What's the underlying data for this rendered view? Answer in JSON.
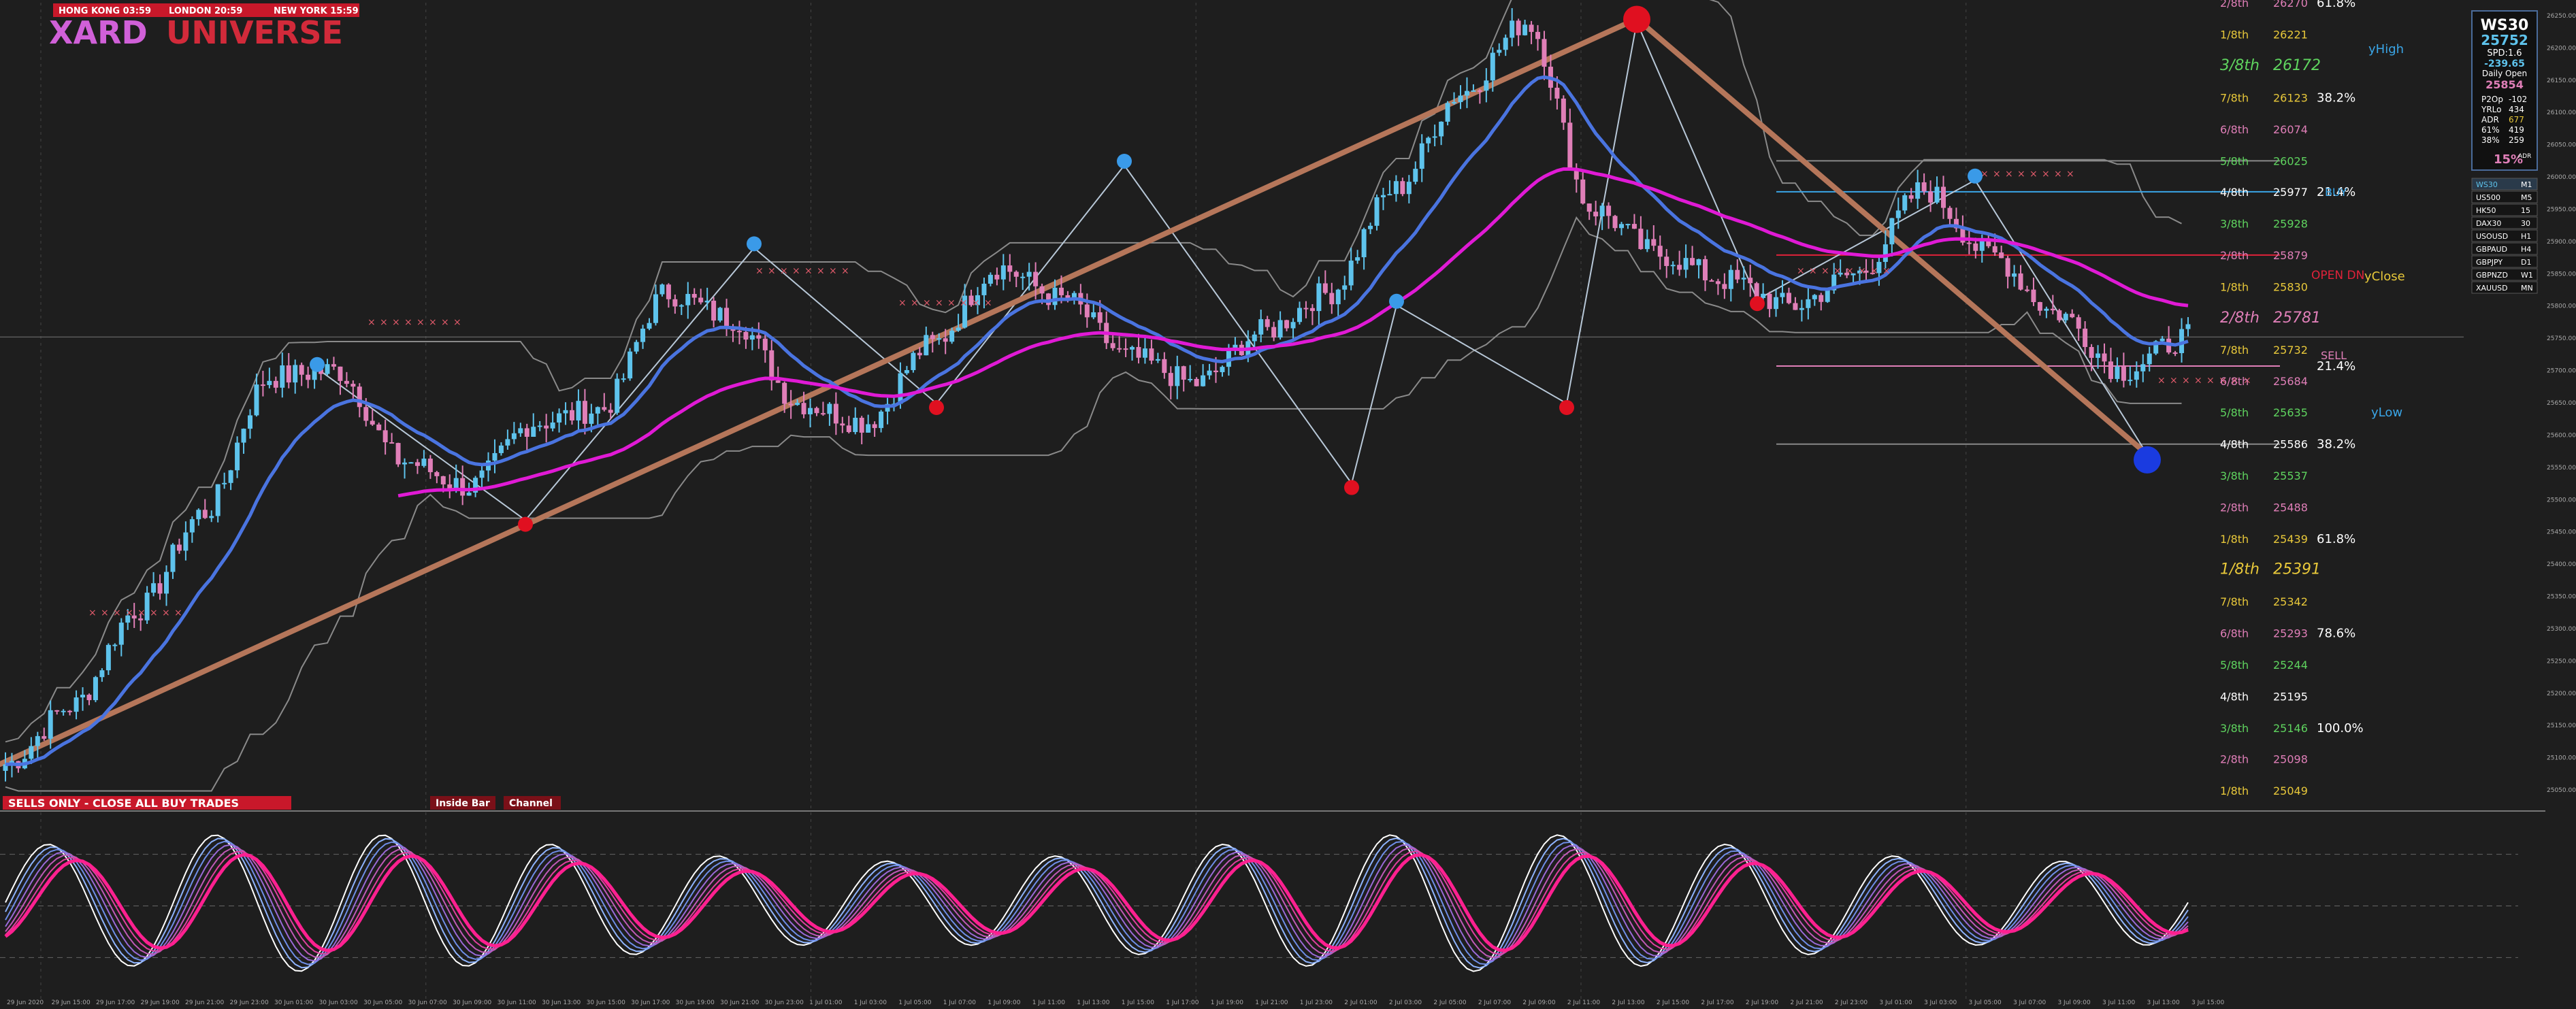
{
  "header": {
    "sessions": [
      {
        "label": "HONG KONG 03:59"
      },
      {
        "label": "LONDON  20:59"
      },
      {
        "label": "NEW YORK 15:59"
      }
    ],
    "brand_left": "XARD",
    "brand_right": "UNIVERSE",
    "colors": {
      "bg": "#1e1e1e",
      "accent": "#d11f2b",
      "bull": "#5ec3ec",
      "bear": "#e07fb8",
      "fast_ma": "#4a74e0",
      "slow_ma": "#e01ad5",
      "trend": "#b5765a"
    }
  },
  "banner": {
    "trade_status": "SELLS ONLY - CLOSE ALL BUY TRADES",
    "tag1": "Inside Bar",
    "tag2": "Channel"
  },
  "info_panel": {
    "symbol": "WS30",
    "price": "25752",
    "spread": "SPD:1.6",
    "change": "-239.65",
    "daily_open_label": "Daily Open",
    "daily_open": "25854",
    "rows": [
      {
        "k": "P2Op",
        "v": "-102"
      },
      {
        "k": "YRLo",
        "v": "434"
      },
      {
        "k": "ADR",
        "v": "677"
      },
      {
        "k": "61%",
        "v": "419"
      },
      {
        "k": "38%",
        "v": "259"
      }
    ],
    "pct": "15%",
    "pct_suffix": "ADR"
  },
  "symbol_list": [
    {
      "sym": "WS30",
      "tf": "M1"
    },
    {
      "sym": "US500",
      "tf": "M5"
    },
    {
      "sym": "HK50",
      "tf": "15"
    },
    {
      "sym": "DAX30",
      "tf": "30"
    },
    {
      "sym": "USOUSD",
      "tf": "H1"
    },
    {
      "sym": "GBPAUD",
      "tf": "H4"
    },
    {
      "sym": "GBPJPY",
      "tf": "D1"
    },
    {
      "sym": "GBPNZD",
      "tf": "W1"
    },
    {
      "sym": "XAUUSD",
      "tf": "MN"
    }
  ],
  "murrey": [
    {
      "label": "2/8th",
      "v": "26270",
      "color": "#e07fb8"
    },
    {
      "label": "1/8th",
      "v": "26221",
      "color": "#e8c83a"
    },
    {
      "label": "3/8th",
      "v": "26172",
      "color": "#5fd45f",
      "big": true
    },
    {
      "label": "7/8th",
      "v": "26123",
      "color": "#e8c83a"
    },
    {
      "label": "6/8th",
      "v": "26074",
      "color": "#e07fb8"
    },
    {
      "label": "5/8th",
      "v": "26025",
      "color": "#5fd45f"
    },
    {
      "label": "4/8th",
      "v": "25977",
      "color": "#ffffff"
    },
    {
      "label": "3/8th",
      "v": "25928",
      "color": "#5fd45f"
    },
    {
      "label": "2/8th",
      "v": "25879",
      "color": "#e07fb8"
    },
    {
      "label": "1/8th",
      "v": "25830",
      "color": "#e8c83a"
    },
    {
      "label": "2/8th",
      "v": "25781",
      "color": "#e07fb8",
      "big": true
    },
    {
      "label": "7/8th",
      "v": "25732",
      "color": "#e8c83a"
    },
    {
      "label": "6/8th",
      "v": "25684",
      "color": "#e07fb8"
    },
    {
      "label": "5/8th",
      "v": "25635",
      "color": "#5fd45f"
    },
    {
      "label": "4/8th",
      "v": "25586",
      "color": "#ffffff"
    },
    {
      "label": "3/8th",
      "v": "25537",
      "color": "#5fd45f"
    },
    {
      "label": "2/8th",
      "v": "25488",
      "color": "#e07fb8"
    },
    {
      "label": "1/8th",
      "v": "25439",
      "color": "#e8c83a"
    },
    {
      "label": "1/8th",
      "v": "25391",
      "color": "#e8c83a",
      "big": true
    },
    {
      "label": "7/8th",
      "v": "25342",
      "color": "#e8c83a"
    },
    {
      "label": "6/8th",
      "v": "25293",
      "color": "#e07fb8"
    },
    {
      "label": "5/8th",
      "v": "25244",
      "color": "#5fd45f"
    },
    {
      "label": "4/8th",
      "v": "25195",
      "color": "#ffffff"
    },
    {
      "label": "3/8th",
      "v": "25146",
      "color": "#5fd45f"
    },
    {
      "label": "2/8th",
      "v": "25098",
      "color": "#e07fb8"
    },
    {
      "label": "1/8th",
      "v": "25049",
      "color": "#e8c83a"
    }
  ],
  "fibs": [
    {
      "text": "61.8%",
      "price": 26270
    },
    {
      "text": "38.2%",
      "price": 26123
    },
    {
      "text": "21.4%",
      "price": 25977
    },
    {
      "text": "21.4%",
      "price": 25707
    },
    {
      "text": "38.2%",
      "price": 25586
    },
    {
      "text": "61.8%",
      "price": 25439
    },
    {
      "text": "78.6%",
      "price": 25293
    },
    {
      "text": "100.0%",
      "price": 25146
    }
  ],
  "annotations": {
    "yhigh": "yHigh",
    "buy": "BUY",
    "open_dn": "OPEN DN",
    "yclose": "yClose",
    "sell": "SELL",
    "ylow": "yLow"
  },
  "chart_data": {
    "type": "candlestick",
    "symbol": "WS30",
    "ylim": [
      25030,
      26290
    ],
    "current_price": 25752,
    "x_tick_labels": [
      "29 Jun 2020",
      "29 Jun 15:00",
      "29 Jun 17:00",
      "29 Jun 19:00",
      "29 Jun 21:00",
      "29 Jun 23:00",
      "30 Jun 01:00",
      "30 Jun 03:00",
      "30 Jun 05:00",
      "30 Jun 07:00",
      "30 Jun 09:00",
      "30 Jun 11:00",
      "30 Jun 13:00",
      "30 Jun 15:00",
      "30 Jun 17:00",
      "30 Jun 19:00",
      "30 Jun 21:00",
      "30 Jun 23:00",
      "1 Jul 01:00",
      "1 Jul 03:00",
      "1 Jul 05:00",
      "1 Jul 07:00",
      "1 Jul 09:00",
      "1 Jul 11:00",
      "1 Jul 13:00",
      "1 Jul 15:00",
      "1 Jul 17:00",
      "1 Jul 19:00",
      "1 Jul 21:00",
      "1 Jul 23:00",
      "2 Jul 01:00",
      "2 Jul 03:00",
      "2 Jul 05:00",
      "2 Jul 07:00",
      "2 Jul 09:00",
      "2 Jul 11:00",
      "2 Jul 13:00",
      "2 Jul 15:00",
      "2 Jul 17:00",
      "2 Jul 19:00",
      "2 Jul 21:00",
      "2 Jul 23:00",
      "3 Jul 01:00",
      "3 Jul 03:00",
      "3 Jul 05:00",
      "3 Jul 07:00",
      "3 Jul 09:00",
      "3 Jul 11:00",
      "3 Jul 13:00",
      "3 Jul 15:00"
    ],
    "key_closes": [
      25090,
      25180,
      25330,
      25480,
      25690,
      25700,
      25560,
      25520,
      25620,
      25640,
      25820,
      25780,
      25650,
      25620,
      25740,
      25860,
      25810,
      25720,
      25680,
      25760,
      25820,
      25980,
      26130,
      26240,
      25950,
      25880,
      25840,
      25800,
      25850,
      25980,
      25880,
      25790,
      25700,
      25752
    ],
    "swing_points": [
      {
        "type": "high",
        "price": 25703
      },
      {
        "type": "low",
        "price": 25468
      },
      {
        "type": "high",
        "price": 25890
      },
      {
        "type": "low",
        "price": 25649
      },
      {
        "type": "high",
        "price": 26018
      },
      {
        "type": "low",
        "price": 25525
      },
      {
        "type": "high",
        "price": 25801
      },
      {
        "type": "low",
        "price": 25649
      },
      {
        "type": "high",
        "price": 26240
      },
      {
        "type": "low",
        "price": 25810
      },
      {
        "type": "high",
        "price": 25995
      },
      {
        "type": "low",
        "price": 25570
      }
    ],
    "oscillator": {
      "ylim": [
        0,
        100
      ],
      "levels": [
        20,
        50,
        80
      ]
    }
  }
}
